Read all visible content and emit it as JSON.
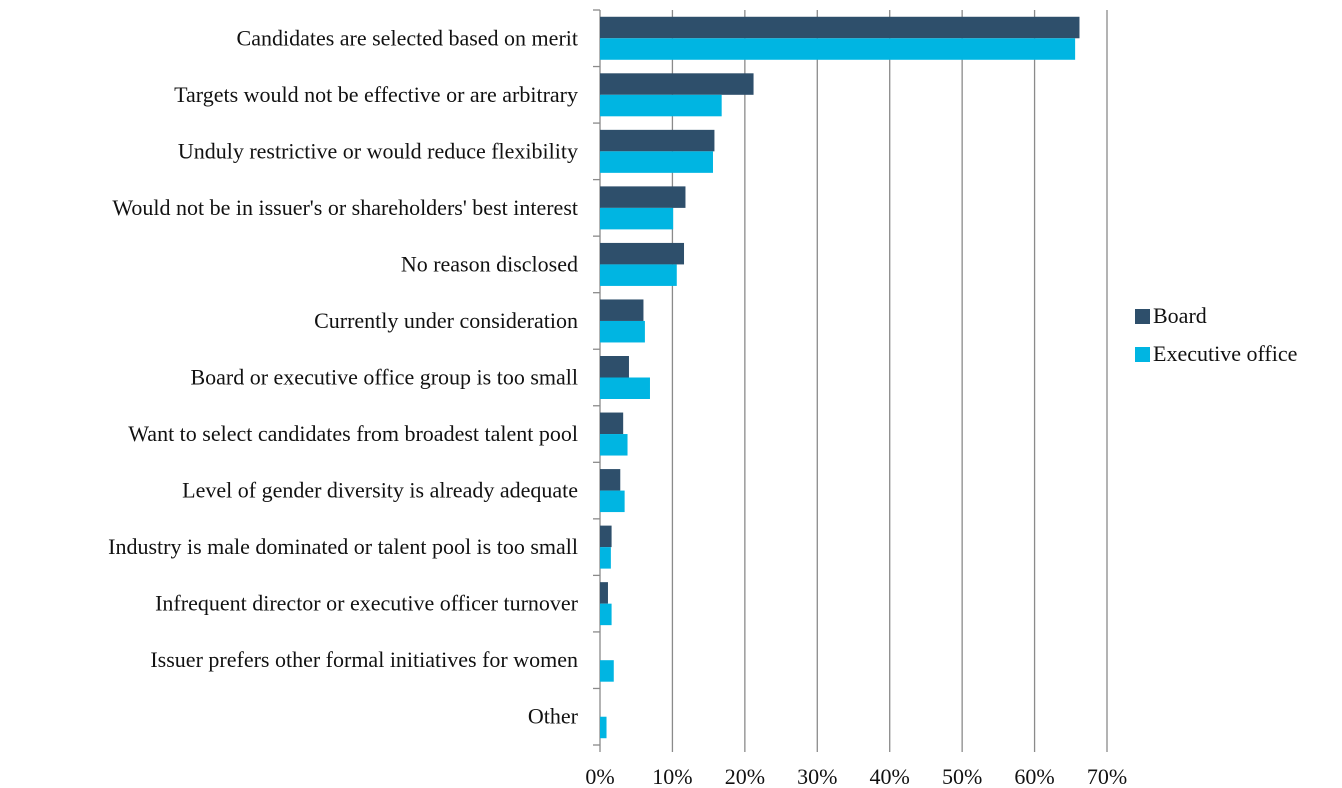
{
  "chart_data": {
    "type": "bar",
    "orientation": "horizontal",
    "categories": [
      "Candidates are selected based on merit",
      "Targets would not be effective or are arbitrary",
      "Unduly restrictive or would reduce flexibility",
      "Would not be in issuer's or shareholders' best interest",
      "No reason disclosed",
      "Currently under consideration",
      "Board or executive office group is too small",
      "Want to select candidates from broadest talent pool",
      "Level of gender diversity is already adequate",
      "Industry is male dominated or talent pool is too small",
      "Infrequent director or executive officer turnover",
      "Issuer prefers other formal initiatives for women",
      "Other"
    ],
    "series": [
      {
        "name": "Board",
        "color": "#2e4f6b",
        "values": [
          66.2,
          21.2,
          15.8,
          11.8,
          11.6,
          6.0,
          4.0,
          3.2,
          2.8,
          1.6,
          1.1,
          0,
          0
        ]
      },
      {
        "name": "Executive office",
        "color": "#00b5e2",
        "values": [
          65.6,
          16.8,
          15.6,
          10.1,
          10.6,
          6.2,
          6.9,
          3.8,
          3.4,
          1.5,
          1.6,
          1.9,
          0.9
        ]
      }
    ],
    "xlim": [
      0,
      70
    ],
    "xticks": [
      "0%",
      "10%",
      "20%",
      "30%",
      "40%",
      "50%",
      "60%",
      "70%"
    ],
    "grid": true,
    "legend_position": "right",
    "title": "",
    "xlabel": "",
    "ylabel": ""
  }
}
